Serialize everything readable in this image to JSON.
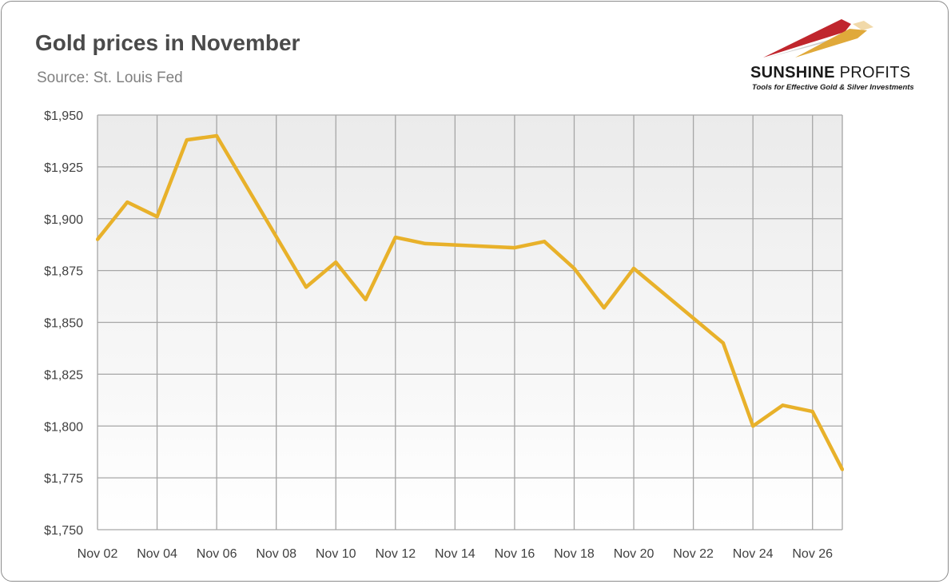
{
  "header": {
    "title": "Gold prices in November",
    "subtitle": "Source: St. Louis Fed"
  },
  "logo": {
    "name_bold": "SUNSHINE",
    "name_light": "PROFITS",
    "tagline": "Tools for Effective Gold & Silver Investments",
    "colors": {
      "red": "#c0262d",
      "gold": "#e0a93a",
      "grey": "#b0b0b0"
    }
  },
  "chart_data": {
    "type": "line",
    "title": "Gold prices in November",
    "subtitle": "Source: St. Louis Fed",
    "xlabel": "",
    "ylabel": "",
    "ylim": [
      1750,
      1950
    ],
    "y_ticks": [
      "$1,750",
      "$1,775",
      "$1,800",
      "$1,825",
      "$1,850",
      "$1,875",
      "$1,900",
      "$1,925",
      "$1,950"
    ],
    "x_ticks": [
      "Nov 02",
      "Nov 04",
      "Nov 06",
      "Nov 08",
      "Nov 10",
      "Nov 12",
      "Nov 14",
      "Nov 16",
      "Nov 18",
      "Nov 20",
      "Nov 22",
      "Nov 24",
      "Nov 26"
    ],
    "xlim": [
      "2020-11-02",
      "2020-11-27"
    ],
    "grid": true,
    "legend": "none",
    "color": "#e8b12a",
    "x": [
      "2020-11-02",
      "2020-11-03",
      "2020-11-04",
      "2020-11-05",
      "2020-11-06",
      "2020-11-09",
      "2020-11-10",
      "2020-11-11",
      "2020-11-12",
      "2020-11-13",
      "2020-11-16",
      "2020-11-17",
      "2020-11-18",
      "2020-11-19",
      "2020-11-20",
      "2020-11-23",
      "2020-11-24",
      "2020-11-25",
      "2020-11-26",
      "2020-11-27"
    ],
    "values": [
      1890,
      1908,
      1901,
      1938,
      1940,
      1867,
      1879,
      1861,
      1891,
      1888,
      1886,
      1889,
      1876,
      1857,
      1876,
      1840,
      1800,
      1810,
      1807,
      1779
    ]
  }
}
